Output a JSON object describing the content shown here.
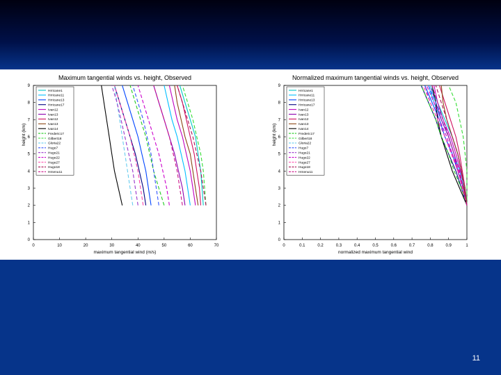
{
  "slide": {
    "page_number": "11"
  },
  "chart_data": [
    {
      "type": "line",
      "title": "Maximum tangential winds vs. height, Observed",
      "xlabel": "maximum tangential wind (m/s)",
      "ylabel": "height (km)",
      "xlim": [
        0,
        70
      ],
      "ylim": [
        0,
        9
      ],
      "xticks": [
        "0",
        "10",
        "20",
        "30",
        "40",
        "50",
        "60",
        "70"
      ],
      "yticks": [
        "0",
        "1",
        "2",
        "3",
        "4",
        "5",
        "6",
        "7",
        "8",
        "9"
      ],
      "heights": [
        2,
        3,
        4,
        5,
        6,
        7,
        8,
        9
      ],
      "grid": false,
      "legend_position": "top-left",
      "series": [
        {
          "name": "Hrricane1",
          "color": "#00c8c8",
          "dash": "none",
          "values": [
            65,
            64.5,
            64,
            63,
            62,
            60,
            58,
            56
          ]
        },
        {
          "name": "Hrricane11",
          "color": "#00bfff",
          "dash": "none",
          "values": [
            60,
            59,
            58,
            56.5,
            55,
            53,
            51.5,
            50
          ]
        },
        {
          "name": "Hrricane13",
          "color": "#0044ff",
          "dash": "none",
          "values": [
            45,
            44,
            43,
            41.5,
            40,
            38,
            36,
            34
          ]
        },
        {
          "name": "Hrricane17",
          "color": "#000080",
          "dash": "none",
          "values": [
            43,
            42,
            40.5,
            39,
            37,
            35,
            33,
            31
          ]
        },
        {
          "name": "Ivan12",
          "color": "#c000c0",
          "dash": "none",
          "values": [
            62,
            61,
            60,
            58.5,
            57,
            55,
            53.5,
            52
          ]
        },
        {
          "name": "Ivan13",
          "color": "#8b00b0",
          "dash": "none",
          "values": [
            58,
            57,
            55.5,
            54,
            52,
            50,
            48,
            46
          ]
        },
        {
          "name": "Ivan12",
          "color": "#d01060",
          "dash": "none",
          "values": [
            64,
            63.5,
            62.5,
            61.5,
            60,
            58.5,
            57,
            55
          ]
        },
        {
          "name": "Ivan13",
          "color": "#8b4513",
          "dash": "none",
          "values": [
            63,
            62,
            61,
            60,
            58,
            56.5,
            55,
            54
          ]
        },
        {
          "name": "Ivan14",
          "color": "#000000",
          "dash": "none",
          "values": [
            34,
            32.5,
            31,
            30,
            29,
            28,
            27,
            26
          ]
        },
        {
          "name": "Frederic17",
          "color": "#22cc22",
          "dash": "5,3",
          "values": [
            50,
            48,
            46,
            44.5,
            43,
            41,
            39,
            37
          ]
        },
        {
          "name": "Gilbert18",
          "color": "#33dd33",
          "dash": "5,3",
          "values": [
            66,
            65.5,
            65,
            64,
            62.5,
            61,
            59,
            57
          ]
        },
        {
          "name": "Gloria22",
          "color": "#66ccee",
          "dash": "5,3",
          "values": [
            38,
            37,
            36,
            35,
            34,
            33,
            32,
            31
          ]
        },
        {
          "name": "Hugo7",
          "color": "#3355ff",
          "dash": "5,3",
          "values": [
            48,
            47,
            46,
            45,
            43.5,
            42,
            40,
            38
          ]
        },
        {
          "name": "Hugo21",
          "color": "#9933cc",
          "dash": "5,3",
          "values": [
            40,
            39,
            38,
            36.5,
            35,
            33.5,
            32,
            30
          ]
        },
        {
          "name": "Hugo22",
          "color": "#cc00cc",
          "dash": "5,3",
          "values": [
            52,
            51,
            49.5,
            48,
            46,
            44,
            42,
            40
          ]
        },
        {
          "name": "Hugo27",
          "color": "#ff44aa",
          "dash": "5,3",
          "values": [
            42,
            41,
            40,
            38.5,
            37,
            35,
            33,
            31
          ]
        },
        {
          "name": "Hugo18",
          "color": "#aa1155",
          "dash": "5,3",
          "values": [
            66,
            65,
            64,
            62.5,
            61,
            59,
            57,
            55
          ]
        },
        {
          "name": "Hmenu11",
          "color": "#cc1188",
          "dash": "5,3",
          "values": [
            57,
            56,
            55,
            53.5,
            52,
            50,
            48,
            46
          ]
        }
      ]
    },
    {
      "type": "line",
      "title": "Normalized maximum tangential winds vs. height, Observed",
      "xlabel": "normalized maximum tangential wind",
      "ylabel": "height (km)",
      "xlim": [
        0,
        1
      ],
      "ylim": [
        0,
        9
      ],
      "xticks": [
        "0",
        "0.1",
        "0.2",
        "0.3",
        "0.4",
        "0.5",
        "0.6",
        "0.7",
        "0.8",
        "0.9",
        "1"
      ],
      "yticks": [
        "0",
        "1",
        "2",
        "3",
        "4",
        "5",
        "6",
        "7",
        "8",
        "9"
      ],
      "heights": [
        2,
        3,
        4,
        5,
        6,
        7,
        8,
        9
      ],
      "grid": false,
      "legend_position": "top-left",
      "series": [
        {
          "name": "Hrricane1",
          "color": "#00c8c8",
          "dash": "none",
          "values": [
            1,
            0.99,
            0.97,
            0.95,
            0.92,
            0.88,
            0.84,
            0.8
          ]
        },
        {
          "name": "Hrricane11",
          "color": "#00bfff",
          "dash": "none",
          "values": [
            1,
            0.985,
            0.96,
            0.93,
            0.9,
            0.86,
            0.82,
            0.79
          ]
        },
        {
          "name": "Hrricane13",
          "color": "#0044ff",
          "dash": "none",
          "values": [
            1,
            0.98,
            0.95,
            0.92,
            0.88,
            0.85,
            0.81,
            0.77
          ]
        },
        {
          "name": "Hrricane17",
          "color": "#000080",
          "dash": "none",
          "values": [
            1,
            0.97,
            0.94,
            0.9,
            0.86,
            0.83,
            0.79,
            0.75
          ]
        },
        {
          "name": "Ivan12",
          "color": "#c000c0",
          "dash": "none",
          "values": [
            1,
            0.985,
            0.965,
            0.94,
            0.91,
            0.87,
            0.84,
            0.82
          ]
        },
        {
          "name": "Ivan13",
          "color": "#8b00b0",
          "dash": "none",
          "values": [
            1,
            0.98,
            0.95,
            0.93,
            0.9,
            0.86,
            0.83,
            0.8
          ]
        },
        {
          "name": "Ivan12",
          "color": "#d01060",
          "dash": "none",
          "values": [
            1,
            0.99,
            0.975,
            0.96,
            0.94,
            0.91,
            0.88,
            0.85
          ]
        },
        {
          "name": "Ivan13",
          "color": "#8b4513",
          "dash": "none",
          "values": [
            1,
            0.985,
            0.97,
            0.95,
            0.92,
            0.89,
            0.87,
            0.86
          ]
        },
        {
          "name": "Ivan14",
          "color": "#000000",
          "dash": "none",
          "values": [
            1,
            0.96,
            0.92,
            0.89,
            0.86,
            0.84,
            0.83,
            0.81
          ]
        },
        {
          "name": "Frederic17",
          "color": "#22cc22",
          "dash": "5,3",
          "values": [
            1,
            0.97,
            0.93,
            0.9,
            0.86,
            0.83,
            0.79,
            0.75
          ]
        },
        {
          "name": "Gilbert18",
          "color": "#33dd33",
          "dash": "5,3",
          "values": [
            1,
            1,
            1.0,
            0.99,
            0.98,
            0.96,
            0.94,
            0.9
          ]
        },
        {
          "name": "Gloria22",
          "color": "#66ccee",
          "dash": "5,3",
          "values": [
            1,
            0.99,
            0.96,
            0.93,
            0.9,
            0.87,
            0.83,
            0.8
          ]
        },
        {
          "name": "Hugo7",
          "color": "#3355ff",
          "dash": "5,3",
          "values": [
            1,
            0.98,
            0.96,
            0.93,
            0.9,
            0.87,
            0.83,
            0.79
          ]
        },
        {
          "name": "Hugo21",
          "color": "#9933cc",
          "dash": "5,3",
          "values": [
            1,
            0.975,
            0.95,
            0.92,
            0.88,
            0.84,
            0.8,
            0.77
          ]
        },
        {
          "name": "Hugo22",
          "color": "#cc00cc",
          "dash": "5,3",
          "values": [
            1,
            0.98,
            0.955,
            0.92,
            0.89,
            0.85,
            0.82,
            0.78
          ]
        },
        {
          "name": "Hugo27",
          "color": "#ff44aa",
          "dash": "5,3",
          "values": [
            1,
            0.975,
            0.95,
            0.915,
            0.88,
            0.84,
            0.8,
            0.76
          ]
        },
        {
          "name": "Hugo18",
          "color": "#aa1155",
          "dash": "5,3",
          "values": [
            1,
            0.99,
            0.97,
            0.95,
            0.92,
            0.89,
            0.86,
            0.83
          ]
        },
        {
          "name": "Hmenu11",
          "color": "#cc1188",
          "dash": "5,3",
          "values": [
            1,
            0.98,
            0.96,
            0.93,
            0.9,
            0.87,
            0.84,
            0.81
          ]
        }
      ]
    }
  ]
}
